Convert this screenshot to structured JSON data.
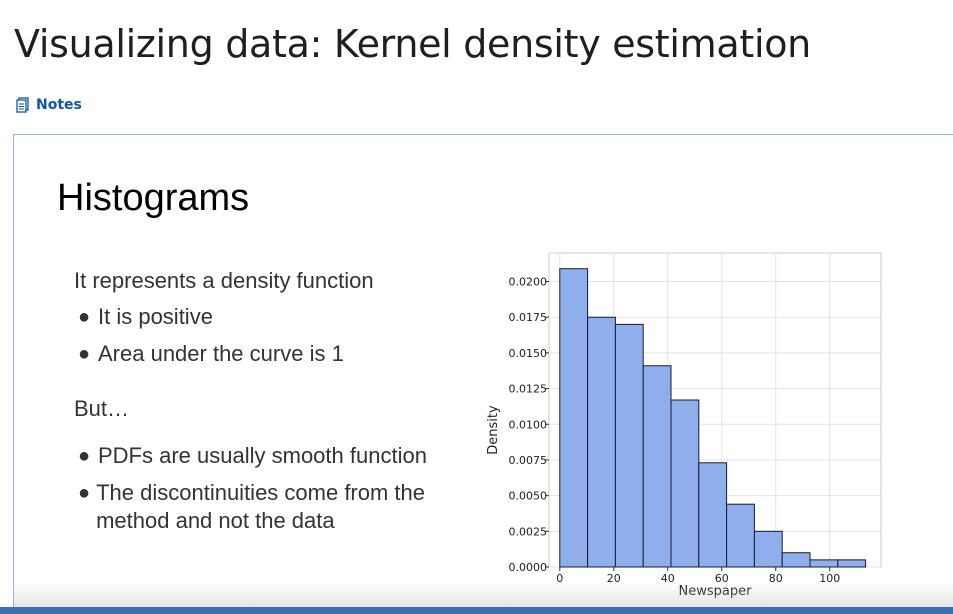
{
  "page": {
    "title": "Visualizing data: Kernel density estimation"
  },
  "notes": {
    "label": "Notes",
    "icon": "notes-icon"
  },
  "slide": {
    "heading": "Histograms",
    "intro": "It represents a density function",
    "bullets_a": [
      "It is positive",
      "Area under the curve is 1"
    ],
    "but": "But…",
    "bullets_b": [
      "PDFs are usually smooth function",
      "The discontinuities come from the method and not the data"
    ]
  },
  "chart_data": {
    "type": "bar",
    "xlabel": "Newspaper",
    "ylabel": "Density",
    "x_ticks": [
      0,
      20,
      40,
      60,
      80,
      100
    ],
    "y_ticks": [
      "0.0000",
      "0.0025",
      "0.0050",
      "0.0075",
      "0.0100",
      "0.0125",
      "0.0150",
      "0.0175",
      "0.0200"
    ],
    "xlim": [
      -4,
      119
    ],
    "ylim": [
      0,
      0.022
    ],
    "bin_edges": [
      0,
      10.3,
      20.6,
      30.9,
      41.2,
      51.5,
      61.8,
      72.1,
      82.4,
      92.7,
      103,
      113.3
    ],
    "values": [
      0.0209,
      0.0175,
      0.017,
      0.0141,
      0.0117,
      0.0073,
      0.0044,
      0.0025,
      0.001,
      0.0005,
      0.0005
    ],
    "grid": true,
    "bar_color": "#8eaeec",
    "edge_color": "#1a1a2e"
  },
  "colors": {
    "accent": "#0b57a8",
    "frame": "#8fb3dc",
    "bottom_bar": "#3a6fb0"
  }
}
